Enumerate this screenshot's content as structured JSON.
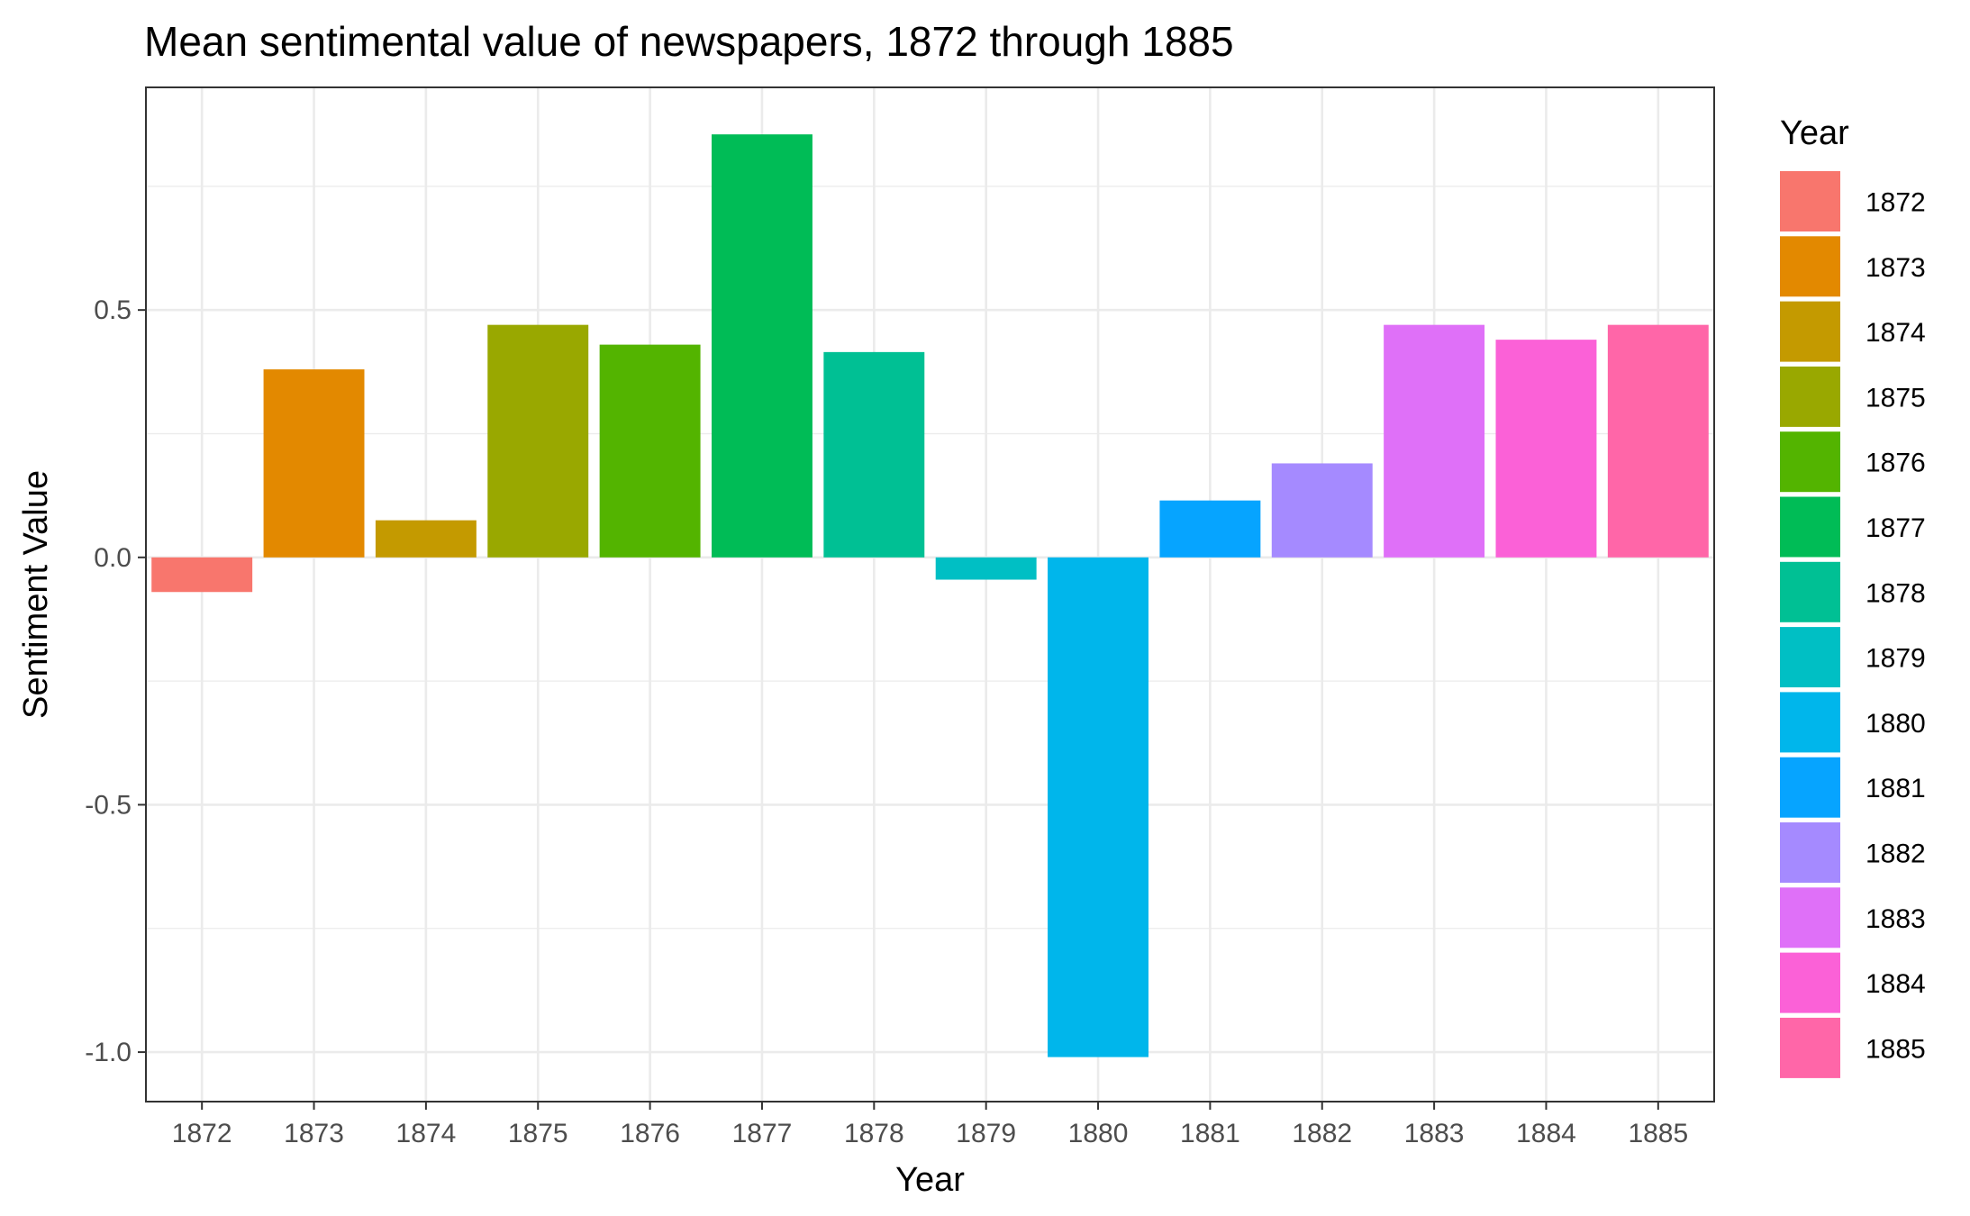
{
  "chart_data": {
    "type": "bar",
    "title": "Mean sentimental value of newspapers, 1872 through 1885",
    "xlabel": "Year",
    "ylabel": "Sentiment Value",
    "categories": [
      "1872",
      "1873",
      "1874",
      "1875",
      "1876",
      "1877",
      "1878",
      "1879",
      "1880",
      "1881",
      "1882",
      "1883",
      "1884",
      "1885"
    ],
    "values": [
      -0.07,
      0.38,
      0.075,
      0.47,
      0.43,
      0.855,
      0.415,
      -0.045,
      -1.01,
      0.115,
      0.19,
      0.47,
      0.44,
      0.47
    ],
    "colors": [
      "#F8766D",
      "#E38900",
      "#C49A00",
      "#99A800",
      "#53B400",
      "#00BC56",
      "#00C094",
      "#00BFC4",
      "#00B6EB",
      "#06A4FF",
      "#A58AFF",
      "#DF70F8",
      "#FB61D7",
      "#FF66A8"
    ],
    "ylim": [
      -1.1,
      0.95
    ],
    "yticks": [
      -1.0,
      -0.5,
      0.0,
      0.5
    ],
    "ytick_labels": [
      "-1.0",
      "-0.5",
      "0.0",
      "0.5"
    ],
    "grid": true,
    "legend": {
      "title": "Year",
      "position": "right",
      "entries": [
        "1872",
        "1873",
        "1874",
        "1875",
        "1876",
        "1877",
        "1878",
        "1879",
        "1880",
        "1881",
        "1882",
        "1883",
        "1884",
        "1885"
      ]
    }
  }
}
